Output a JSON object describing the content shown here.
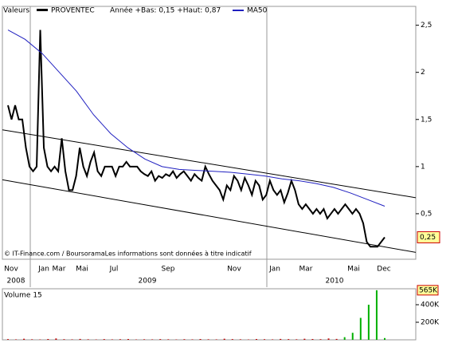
{
  "chart_data": {
    "type": "line",
    "legend": {
      "label": "Valeurs",
      "name": "PROVENTEC",
      "range": "Année +Bas: 0,15 +Haut: 0,87",
      "ma": "MA50"
    },
    "credit": "© IT-Finance.com / BoursoramaLes informations sont données à titre indicatif",
    "ylim": [
      0,
      2.7
    ],
    "yticks": [
      {
        "value": 0.5,
        "label": "0,5"
      },
      1,
      {
        "value": 1.5,
        "label": "1,5"
      },
      2,
      {
        "value": 2.5,
        "label": "2,5"
      }
    ],
    "x_labels": [
      "Nov",
      "Jan",
      "Mar",
      "Mai",
      "Jul",
      "Sep",
      "Nov",
      "Jan",
      "Mar",
      "Mai",
      "Dec"
    ],
    "year_labels": [
      "2008",
      "2009",
      "2010"
    ],
    "series": [
      {
        "name": "PROVENTEC",
        "color": "#000000",
        "last_value_label": "0,25",
        "values": [
          1.65,
          1.5,
          1.65,
          1.5,
          1.5,
          1.2,
          1.0,
          0.95,
          1.0,
          2.45,
          1.2,
          1.0,
          0.95,
          1.0,
          0.95,
          1.3,
          0.95,
          0.75,
          0.75,
          0.9,
          1.2,
          1.0,
          0.9,
          1.05,
          1.15,
          0.95,
          0.9,
          1.0,
          1.0,
          1.0,
          0.9,
          1.0,
          1.0,
          1.05,
          1.0,
          1.0,
          1.0,
          0.95,
          0.92,
          0.9,
          0.95,
          0.85,
          0.9,
          0.88,
          0.92,
          0.9,
          0.95,
          0.88,
          0.92,
          0.95,
          0.9,
          0.85,
          0.92,
          0.88,
          0.85,
          1.0,
          0.92,
          0.85,
          0.8,
          0.75,
          0.65,
          0.8,
          0.75,
          0.9,
          0.85,
          0.75,
          0.88,
          0.8,
          0.7,
          0.85,
          0.8,
          0.65,
          0.7,
          0.85,
          0.75,
          0.7,
          0.75,
          0.62,
          0.72,
          0.85,
          0.75,
          0.6,
          0.55,
          0.6,
          0.55,
          0.5,
          0.55,
          0.5,
          0.55,
          0.45,
          0.5,
          0.55,
          0.5,
          0.55,
          0.6,
          0.55,
          0.5,
          0.55,
          0.5,
          0.4,
          0.2,
          0.15,
          0.15,
          0.15,
          0.2,
          0.25
        ]
      },
      {
        "name": "MA50",
        "color": "#2020c0",
        "values": [
          2.45,
          2.35,
          2.2,
          2.0,
          1.8,
          1.55,
          1.35,
          1.2,
          1.08,
          1.0,
          0.97,
          0.96,
          0.95,
          0.94,
          0.92,
          0.9,
          0.87,
          0.85,
          0.82,
          0.78,
          0.72,
          0.65,
          0.58
        ]
      }
    ],
    "channel": {
      "color": "#000000",
      "upper": [
        1.39,
        0.67
      ],
      "lower": [
        0.86,
        0.09
      ]
    },
    "volume": {
      "label": "Volume 15",
      "ylim": [
        0,
        600000
      ],
      "yticks": [
        {
          "value": 200000,
          "label": "200K"
        },
        {
          "value": 400000,
          "label": "400K"
        }
      ],
      "max_label": "565K",
      "up_color": "#00b000",
      "down_color": "#c00000",
      "values": [
        8000,
        5000,
        12000,
        6000,
        4000,
        9000,
        15000,
        7000,
        5000,
        10000,
        6000,
        4000,
        8000,
        5000,
        7000,
        9000,
        4000,
        6000,
        5000,
        8000,
        6000,
        4000,
        7000,
        5000,
        9000,
        6000,
        5000,
        12000,
        8000,
        6000,
        4000,
        9000,
        7000,
        5000,
        10000,
        8000,
        6000,
        12000,
        9000,
        7000,
        15000,
        10000,
        30000,
        80000,
        250000,
        400000,
        565000,
        20000
      ],
      "up": [
        false,
        false,
        false,
        false,
        false,
        false,
        false,
        false,
        false,
        false,
        false,
        false,
        false,
        false,
        false,
        false,
        false,
        false,
        false,
        false,
        false,
        false,
        false,
        false,
        false,
        false,
        false,
        false,
        false,
        false,
        false,
        false,
        false,
        false,
        false,
        false,
        false,
        false,
        false,
        false,
        false,
        false,
        true,
        true,
        true,
        true,
        true,
        true
      ]
    }
  }
}
